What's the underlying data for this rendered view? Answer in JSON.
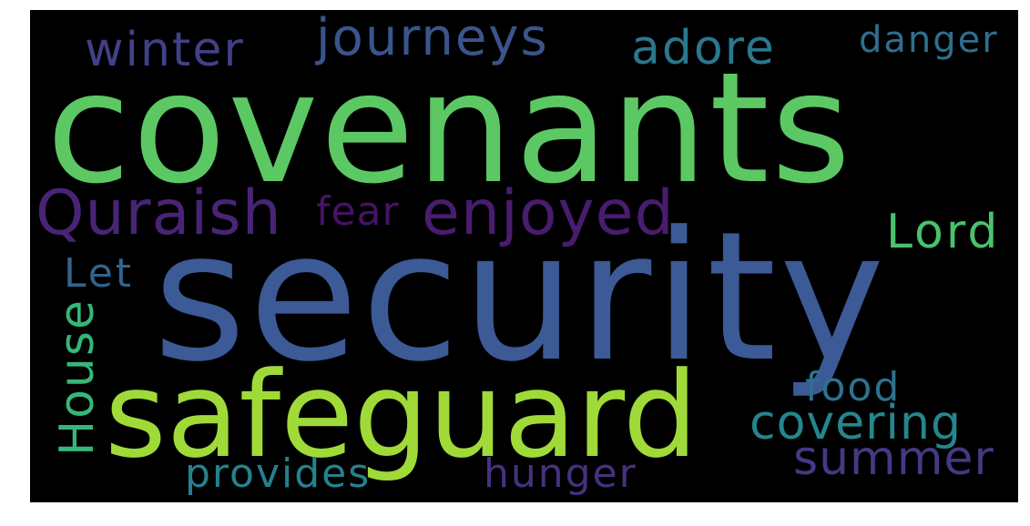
{
  "words": [
    {
      "text": "covenants",
      "color": "#5cc863"
    },
    {
      "text": "security",
      "color": "#3b5a96"
    },
    {
      "text": "safeguard",
      "color": "#a0da39"
    },
    {
      "text": "Quraish",
      "color": "#482476"
    },
    {
      "text": "enjoyed",
      "color": "#481c6e"
    },
    {
      "text": "winter",
      "color": "#424086"
    },
    {
      "text": "journeys",
      "color": "#3a548c"
    },
    {
      "text": "adore",
      "color": "#2a788e"
    },
    {
      "text": "danger",
      "color": "#2e6f8e"
    },
    {
      "text": "fear",
      "color": "#471365"
    },
    {
      "text": "Lord",
      "color": "#4ac16d"
    },
    {
      "text": "Let",
      "color": "#33638d"
    },
    {
      "text": "House",
      "color": "#35b779"
    },
    {
      "text": "food",
      "color": "#2c728e"
    },
    {
      "text": "covering",
      "color": "#24868e"
    },
    {
      "text": "summer",
      "color": "#443983"
    },
    {
      "text": "provides",
      "color": "#26818e"
    },
    {
      "text": "hunger",
      "color": "#46317e"
    }
  ]
}
